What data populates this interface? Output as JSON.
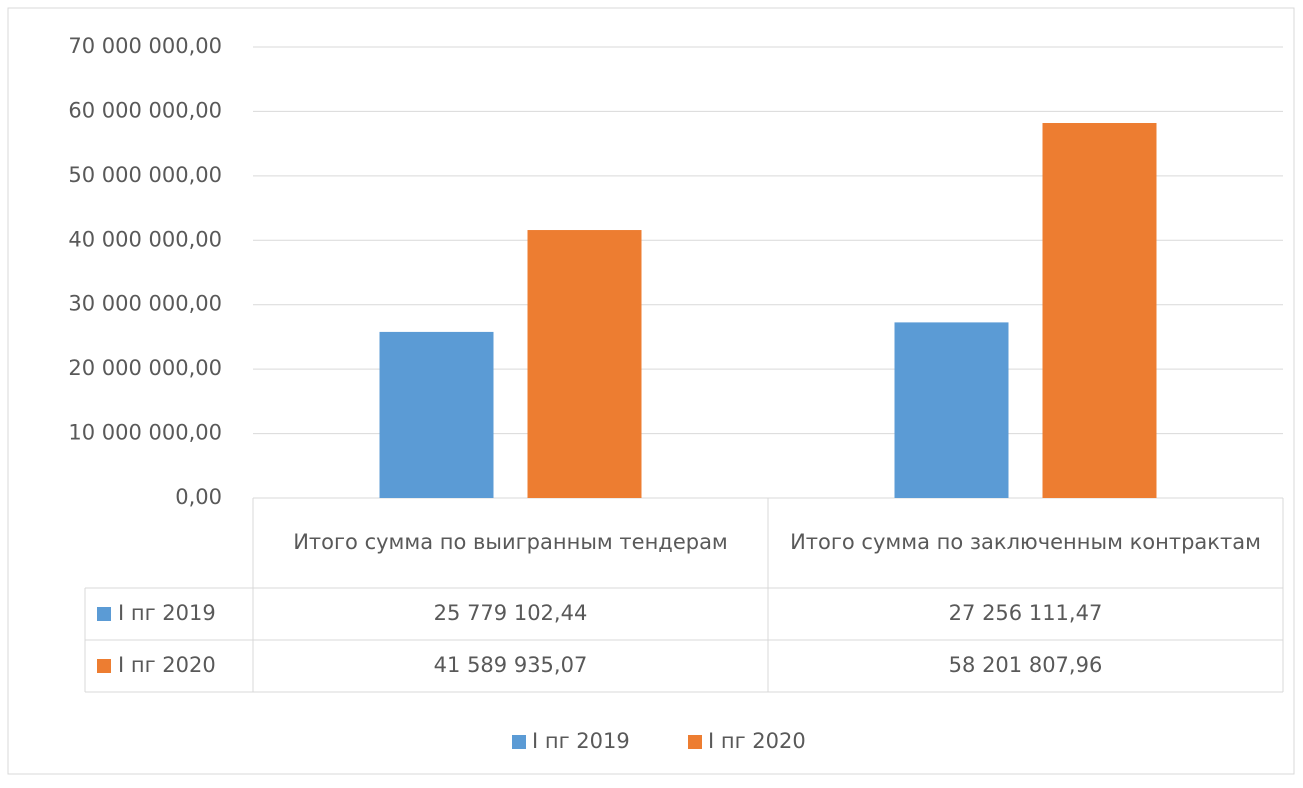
{
  "chart_data": {
    "type": "bar",
    "categories": [
      "Итого сумма по выигранным тендерам",
      "Итого сумма по заключенным контрактам"
    ],
    "series": [
      {
        "name": "I пг 2019",
        "color": "#5b9bd5",
        "values": [
          25779102.44,
          27256111.47
        ],
        "value_labels": [
          "25 779 102,44",
          "27 256 111,47"
        ]
      },
      {
        "name": "I пг 2020",
        "color": "#ed7d31",
        "values": [
          41589935.07,
          58201807.96
        ],
        "value_labels": [
          "41 589 935,07",
          "58 201 807,96"
        ]
      }
    ],
    "ylim": [
      0,
      70000000
    ],
    "yticks": [
      {
        "value": 0,
        "label": "0,00"
      },
      {
        "value": 10000000,
        "label": "10 000 000,00"
      },
      {
        "value": 20000000,
        "label": "20 000 000,00"
      },
      {
        "value": 30000000,
        "label": "30 000 000,00"
      },
      {
        "value": 40000000,
        "label": "40 000 000,00"
      },
      {
        "value": 50000000,
        "label": "50 000 000,00"
      },
      {
        "value": 60000000,
        "label": "60 000 000,00"
      },
      {
        "value": 70000000,
        "label": "70 000 000,00"
      }
    ],
    "grid": true,
    "legend": "bottom"
  }
}
